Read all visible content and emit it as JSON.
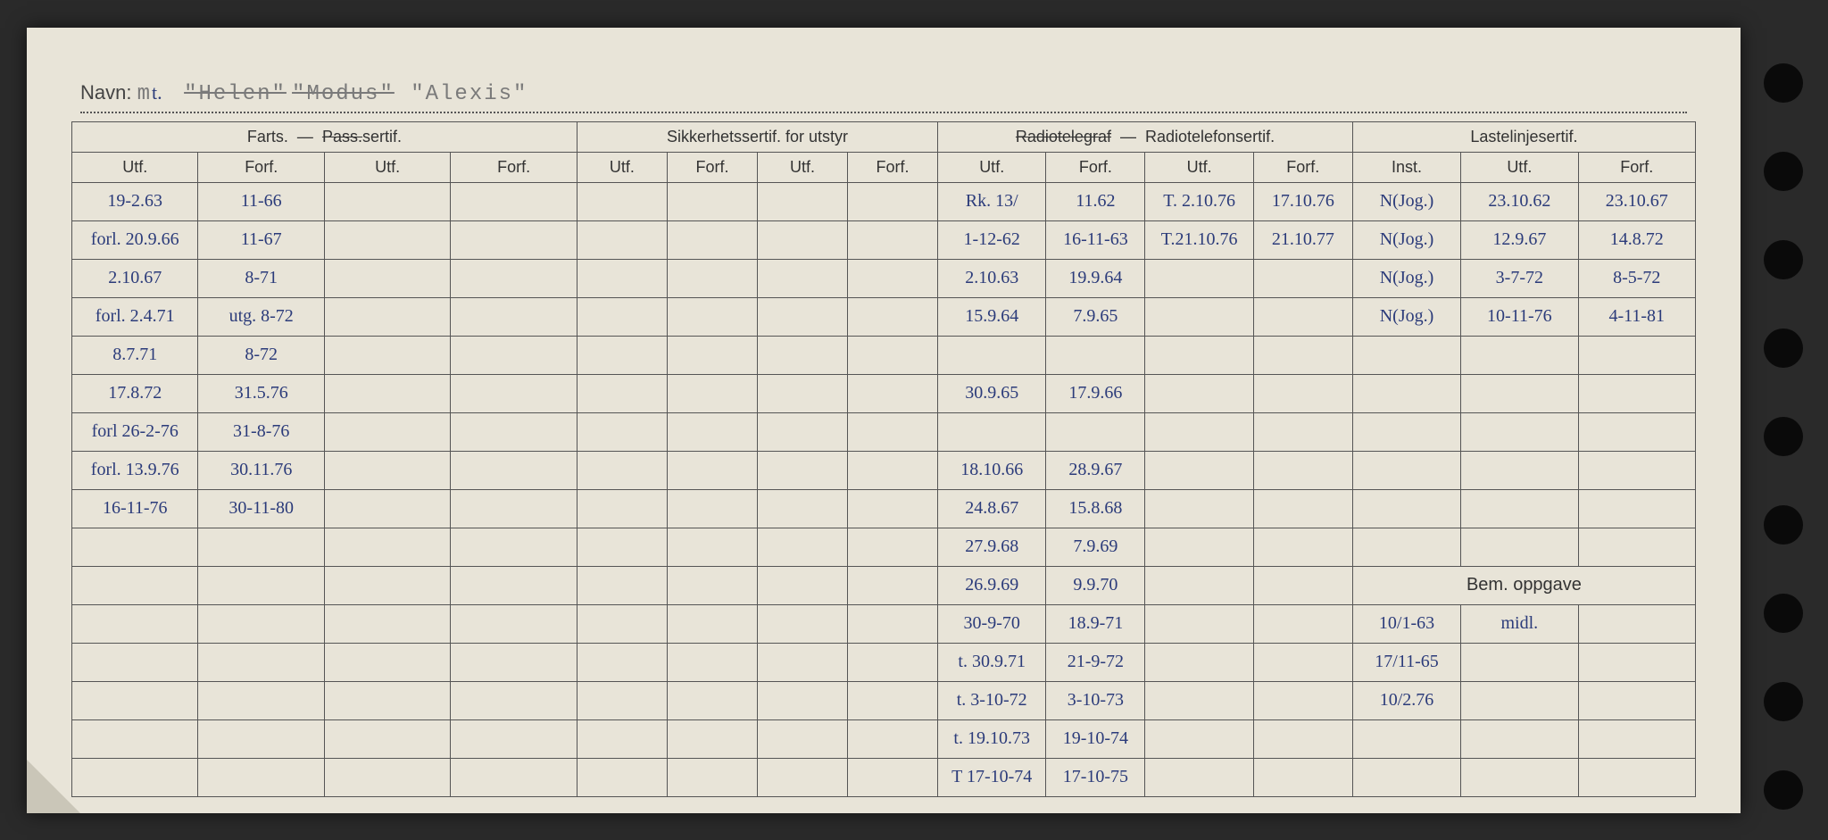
{
  "navn": {
    "label": "Navn:",
    "typed_prefix": "m",
    "pen_t": "t.",
    "struck1": "\"Helen\"",
    "struck2": "\"Modus\"",
    "name3": "\"Alexis\""
  },
  "headers": {
    "group1": "Farts.",
    "group1_struck": "Pass.",
    "group1_suffix": "sertif.",
    "group2": "Sikkerhetssertif. for utstyr",
    "group3a": "Radiotelegraf",
    "group3b": "Radiotelefonsertif.",
    "group4": "Lastelinjesertif.",
    "utf": "Utf.",
    "forf": "Forf.",
    "inst": "Inst.",
    "bem": "Bem. oppgave"
  },
  "rows": [
    {
      "c0": "19-2.63",
      "c1": "11-66",
      "c2": "",
      "c3": "",
      "c4": "",
      "c5": "",
      "c6": "",
      "c7": "",
      "c8": "Rk. 13/",
      "c9": "11.62",
      "c10": "T. 2.10.76",
      "c11": "17.10.76",
      "c12": "N(Jog.)",
      "c13": "23.10.62",
      "c14": "23.10.67"
    },
    {
      "c0": "forl. 20.9.66",
      "c1": "11-67",
      "c2": "",
      "c3": "",
      "c4": "",
      "c5": "",
      "c6": "",
      "c7": "",
      "c8": "1-12-62",
      "c9": "16-11-63",
      "c10": "T.21.10.76",
      "c11": "21.10.77",
      "c12": "N(Jog.)",
      "c13": "12.9.67",
      "c14": "14.8.72"
    },
    {
      "c0": "2.10.67",
      "c1": "8-71",
      "c2": "",
      "c3": "",
      "c4": "",
      "c5": "",
      "c6": "",
      "c7": "",
      "c8": "2.10.63",
      "c9": "19.9.64",
      "c10": "",
      "c11": "",
      "c12": "N(Jog.)",
      "c13": "3-7-72",
      "c14": "8-5-72"
    },
    {
      "c0": "forl. 2.4.71",
      "c1": "utg. 8-72",
      "c2": "",
      "c3": "",
      "c4": "",
      "c5": "",
      "c6": "",
      "c7": "",
      "c8": "15.9.64",
      "c9": "7.9.65",
      "c10": "",
      "c11": "",
      "c12": "N(Jog.)",
      "c13": "10-11-76",
      "c14": "4-11-81"
    },
    {
      "c0": "8.7.71",
      "c1": "8-72",
      "c2": "",
      "c3": "",
      "c4": "",
      "c5": "",
      "c6": "",
      "c7": "",
      "c8": "",
      "c9": "",
      "c10": "",
      "c11": "",
      "c12": "",
      "c13": "",
      "c14": ""
    },
    {
      "c0": "17.8.72",
      "c1": "31.5.76",
      "c2": "",
      "c3": "",
      "c4": "",
      "c5": "",
      "c6": "",
      "c7": "",
      "c8": "30.9.65",
      "c9": "17.9.66",
      "c10": "",
      "c11": "",
      "c12": "",
      "c13": "",
      "c14": ""
    },
    {
      "c0": "forl 26-2-76",
      "c1": "31-8-76",
      "c2": "",
      "c3": "",
      "c4": "",
      "c5": "",
      "c6": "",
      "c7": "",
      "c8": "",
      "c9": "",
      "c10": "",
      "c11": "",
      "c12": "",
      "c13": "",
      "c14": ""
    },
    {
      "c0": "forl. 13.9.76",
      "c1": "30.11.76",
      "c2": "",
      "c3": "",
      "c4": "",
      "c5": "",
      "c6": "",
      "c7": "",
      "c8": "18.10.66",
      "c9": "28.9.67",
      "c10": "",
      "c11": "",
      "c12": "",
      "c13": "",
      "c14": ""
    },
    {
      "c0": "16-11-76",
      "c1": "30-11-80",
      "c2": "",
      "c3": "",
      "c4": "",
      "c5": "",
      "c6": "",
      "c7": "",
      "c8": "24.8.67",
      "c9": "15.8.68",
      "c10": "",
      "c11": "",
      "c12": "",
      "c13": "",
      "c14": ""
    },
    {
      "c0": "",
      "c1": "",
      "c2": "",
      "c3": "",
      "c4": "",
      "c5": "",
      "c6": "",
      "c7": "",
      "c8": "27.9.68",
      "c9": "7.9.69",
      "c10": "",
      "c11": "",
      "c12": "",
      "c13": "",
      "c14": ""
    },
    {
      "c0": "",
      "c1": "",
      "c2": "",
      "c3": "",
      "c4": "",
      "c5": "",
      "c6": "",
      "c7": "",
      "c8": "26.9.69",
      "c9": "9.9.70",
      "c10": "",
      "c11": "",
      "c12": "",
      "c13": "",
      "c14": ""
    },
    {
      "c0": "",
      "c1": "",
      "c2": "",
      "c3": "",
      "c4": "",
      "c5": "",
      "c6": "",
      "c7": "",
      "c8": "30-9-70",
      "c9": "18.9-71",
      "c10": "",
      "c11": "",
      "c12": "10/1-63",
      "c13": "midl.",
      "c14": ""
    },
    {
      "c0": "",
      "c1": "",
      "c2": "",
      "c3": "",
      "c4": "",
      "c5": "",
      "c6": "",
      "c7": "",
      "c8": "t. 30.9.71",
      "c9": "21-9-72",
      "c10": "",
      "c11": "",
      "c12": "17/11-65",
      "c13": "",
      "c14": ""
    },
    {
      "c0": "",
      "c1": "",
      "c2": "",
      "c3": "",
      "c4": "",
      "c5": "",
      "c6": "",
      "c7": "",
      "c8": "t. 3-10-72",
      "c9": "3-10-73",
      "c10": "",
      "c11": "",
      "c12": "10/2.76",
      "c13": "",
      "c14": ""
    },
    {
      "c0": "",
      "c1": "",
      "c2": "",
      "c3": "",
      "c4": "",
      "c5": "",
      "c6": "",
      "c7": "",
      "c8": "t. 19.10.73",
      "c9": "19-10-74",
      "c10": "",
      "c11": "",
      "c12": "",
      "c13": "",
      "c14": ""
    },
    {
      "c0": "",
      "c1": "",
      "c2": "",
      "c3": "",
      "c4": "",
      "c5": "",
      "c6": "",
      "c7": "",
      "c8": "T 17-10-74",
      "c9": "17-10-75",
      "c10": "",
      "c11": "",
      "c12": "",
      "c13": "",
      "c14": ""
    }
  ],
  "colors": {
    "paper": "#e8e4d8",
    "ink_print": "#333333",
    "ink_pen": "#2b3b7a",
    "border": "#555555"
  }
}
